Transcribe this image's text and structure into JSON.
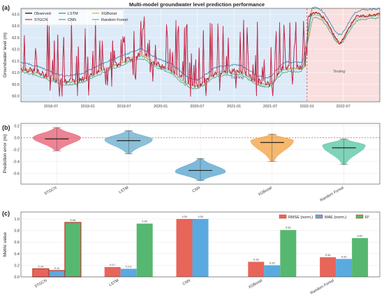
{
  "figure_title": "Multi-model groundwater level prediction performance",
  "colors": {
    "observed": "#000000",
    "stgcn": "#d1284b",
    "lstm": "#2e86ab",
    "cnn": "#4fa07a",
    "xgboost": "#f0a030",
    "rf": "#5cb8a0",
    "train_bg": "#ddeaf7",
    "test_bg": "#f9dfdf",
    "split_line": "#d9534f",
    "zero_line": "#e07050",
    "bar_rmse": "#e8655a",
    "bar_mae": "#5aaae0",
    "bar_r2": "#56b870",
    "violin_stgcn": "#e8657a",
    "violin_lstm": "#6fb0d0",
    "violin_cnn": "#5ea8d0",
    "violin_xgb": "#f4a54a",
    "violin_rf": "#5fc8a8",
    "best_edge": "#c0392b"
  },
  "chart_data": [
    {
      "panel": "(a)",
      "type": "line",
      "ylabel": "Groundwater level (m)",
      "yticks": [
        60.0,
        60.5,
        61.0,
        61.5,
        62.0,
        62.5,
        63.0,
        63.5
      ],
      "ylim": [
        59.75,
        63.75
      ],
      "x_range": [
        "2018-02-01",
        "2022-12-31"
      ],
      "xticks": [
        "2018-07",
        "2019-01",
        "2019-07",
        "2020-01",
        "2020-07",
        "2021-01",
        "2021-07",
        "2022-01",
        "2022-07"
      ],
      "split_date": "2022-01-01",
      "region_labels": {
        "train": "Training",
        "test": "Testing"
      },
      "legend": [
        "Observed",
        "STGCN",
        "LSTM",
        "CNN",
        "XGBoost",
        "Random Forest"
      ],
      "legend_position": "top-left",
      "grid": true,
      "series_shape": {
        "baseline": [
          [
            "2018-02-01",
            61.2
          ],
          [
            "2018-05-01",
            61.0
          ],
          [
            "2018-09-01",
            60.6
          ],
          [
            "2018-12-01",
            60.7
          ],
          [
            "2019-04-01",
            61.2
          ],
          [
            "2019-07-01",
            61.5
          ],
          [
            "2019-10-01",
            61.8
          ],
          [
            "2019-12-01",
            61.4
          ],
          [
            "2020-03-01",
            61.1
          ],
          [
            "2020-05-01",
            60.6
          ],
          [
            "2020-07-01",
            60.4
          ],
          [
            "2020-10-01",
            61.0
          ],
          [
            "2021-02-01",
            61.1
          ],
          [
            "2021-05-01",
            60.6
          ],
          [
            "2021-07-01",
            60.5
          ],
          [
            "2021-09-01",
            61.2
          ],
          [
            "2021-12-31",
            61.2
          ],
          [
            "2022-01-05",
            63.4
          ],
          [
            "2022-02-15",
            63.6
          ],
          [
            "2022-04-01",
            63.3
          ],
          [
            "2022-05-15",
            62.6
          ],
          [
            "2022-06-15",
            62.2
          ],
          [
            "2022-07-15",
            62.7
          ],
          [
            "2022-09-01",
            63.4
          ],
          [
            "2022-12-31",
            63.5
          ]
        ],
        "train_spike_count": 95,
        "train_spike_max": 63.4,
        "train_dip_min": 60.0
      }
    },
    {
      "panel": "(b)",
      "type": "violin",
      "ylabel": "Prediction error (m)",
      "categories": [
        "STGCN",
        "LSTM",
        "CNN",
        "XGBoost",
        "Random Forest"
      ],
      "ylim": [
        -0.78,
        0.24
      ],
      "yticks": [
        -0.6,
        -0.4,
        -0.2,
        0.0,
        0.2
      ],
      "ytick_labels": [
        "-0.6",
        "-0.4",
        "-0.2",
        "0.0",
        "0.2"
      ],
      "zero_line": 0.0,
      "series": [
        {
          "name": "STGCN",
          "median": -0.02,
          "min": -0.22,
          "max": 0.17,
          "peak": 0.0,
          "peak_width": 0.95
        },
        {
          "name": "LSTM",
          "median": -0.05,
          "min": -0.27,
          "max": 0.12,
          "peak": -0.03,
          "peak_width": 0.95
        },
        {
          "name": "CNN",
          "median": -0.55,
          "min": -0.72,
          "max": -0.35,
          "peak": -0.57,
          "peak_width": 1.0
        },
        {
          "name": "XGBoost",
          "median": -0.08,
          "min": -0.4,
          "max": 0.06,
          "peak": -0.05,
          "peak_width": 0.85
        },
        {
          "name": "Random Forest",
          "median": -0.17,
          "min": -0.45,
          "max": -0.02,
          "peak": -0.13,
          "peak_width": 0.85
        }
      ]
    },
    {
      "panel": "(c)",
      "type": "bar",
      "ylabel": "Metric value",
      "categories": [
        "STGCN",
        "LSTM",
        "CNN",
        "XGBoost",
        "Random Forest"
      ],
      "ylim": [
        0,
        1.12
      ],
      "yticks": [
        0.0,
        0.2,
        0.4,
        0.6,
        0.8,
        1.0
      ],
      "ytick_labels": [
        "0.0",
        "0.2",
        "0.4",
        "0.6",
        "0.8",
        "1.0"
      ],
      "legend_position": "top-right",
      "best_model": "STGCN",
      "series": [
        {
          "name": "RMSE (norm.)",
          "values": [
            0.14,
            0.17,
            1.0,
            0.26,
            0.34
          ],
          "labels": [
            "0.14",
            "0.17",
            "1.00",
            "0.26",
            "0.34"
          ]
        },
        {
          "name": "MAE (norm.)",
          "values": [
            0.11,
            0.14,
            1.0,
            0.2,
            0.31
          ],
          "labels": [
            "0.11",
            "0.14",
            "1.00",
            "0.20",
            "0.31"
          ]
        },
        {
          "name": "R²",
          "values": [
            0.94,
            0.92,
            0.0,
            0.81,
            0.67
          ],
          "labels": [
            "0.94",
            "0.92",
            "",
            "0.81",
            "0.67"
          ]
        }
      ]
    }
  ]
}
